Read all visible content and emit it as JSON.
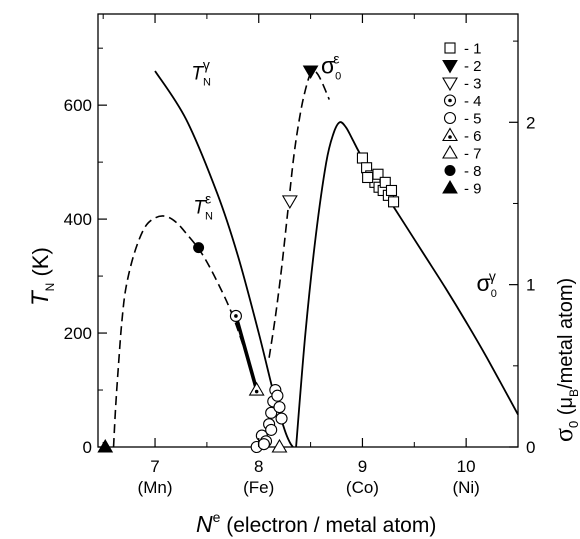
{
  "chart_data": {
    "type": "scatter",
    "x_axis": {
      "range": [
        6.45,
        10.5
      ],
      "ticks": [
        7,
        8,
        9,
        10
      ],
      "sublabels": [
        "(Mn)",
        "(Fe)",
        "(Co)",
        "(Ni)"
      ],
      "label_symbol": "N",
      "label_sup": "e",
      "label_text": "(electron / metal atom)"
    },
    "y_axis_left": {
      "range": [
        0,
        760
      ],
      "ticks": [
        0,
        200,
        400,
        600
      ],
      "label_symbol": "T",
      "label_sub": "N",
      "label_unit": "(K)"
    },
    "y_axis_right": {
      "range": [
        0,
        2.667
      ],
      "ticks": [
        0,
        1,
        2
      ],
      "label_symbol": "σ",
      "label_sub": "0",
      "label_text": "(μ",
      "label_sub2": "B",
      "label_tail": "/metal atom)"
    },
    "curves": [
      {
        "name": "TN-gamma",
        "style": "solid",
        "axis": "left",
        "x": [
          7.0,
          7.3,
          7.6,
          7.8,
          8.0,
          8.15,
          8.25,
          8.3,
          8.33
        ],
        "y": [
          660,
          575,
          445,
          335,
          200,
          90,
          30,
          8,
          0
        ]
      },
      {
        "name": "TN-epsilon",
        "style": "dashed",
        "axis": "left",
        "x": [
          6.6,
          6.62,
          6.65,
          6.68,
          6.72,
          6.8,
          6.9,
          7.0,
          7.1,
          7.2,
          7.3,
          7.45,
          7.6,
          7.75,
          7.9,
          7.98
        ],
        "y": [
          0,
          70,
          150,
          220,
          280,
          340,
          385,
          402,
          405,
          395,
          375,
          340,
          290,
          230,
          150,
          100
        ]
      },
      {
        "name": "sigma0-epsilon",
        "style": "dashed",
        "axis": "right",
        "x": [
          8.1,
          8.16,
          8.22,
          8.28,
          8.34,
          8.4,
          8.45,
          8.5,
          8.55,
          8.6,
          8.68
        ],
        "y": [
          0.55,
          0.8,
          1.1,
          1.45,
          1.8,
          2.05,
          2.2,
          2.3,
          2.31,
          2.26,
          2.14
        ]
      },
      {
        "name": "sigma0-gamma",
        "style": "solid",
        "axis": "right",
        "x": [
          8.36,
          8.45,
          8.55,
          8.65,
          8.72,
          8.78,
          8.84,
          8.9,
          9.0,
          9.2,
          9.4,
          9.6,
          9.8,
          10.0,
          10.2,
          10.5
        ],
        "y": [
          0,
          0.7,
          1.3,
          1.75,
          1.93,
          2.0,
          1.97,
          1.9,
          1.78,
          1.58,
          1.38,
          1.18,
          0.98,
          0.77,
          0.55,
          0.2
        ]
      },
      {
        "name": "thick-segment",
        "style": "thick",
        "axis": "left",
        "x": [
          7.78,
          7.98
        ],
        "y": [
          230,
          100
        ]
      }
    ],
    "curve_labels": [
      {
        "symbol": "T",
        "sub": "N",
        "sup": "γ",
        "x": 7.35,
        "y": 645,
        "axis": "left"
      },
      {
        "symbol": "T",
        "sub": "N",
        "sup": "ε",
        "x": 7.37,
        "y": 410,
        "axis": "left"
      },
      {
        "symbol": "σ",
        "sub": "0",
        "sup": "ε",
        "x": 8.6,
        "y": 2.3,
        "axis": "right"
      },
      {
        "symbol": "σ",
        "sub": "0",
        "sup": "γ",
        "x": 10.1,
        "y": 0.96,
        "axis": "right"
      }
    ],
    "series": [
      {
        "name": "- 1",
        "marker": "square-open",
        "axis": "right",
        "x": [
          9.0,
          9.04,
          9.08,
          9.12,
          9.16,
          9.2,
          9.25,
          9.3,
          9.05,
          9.15,
          9.22,
          9.28
        ],
        "y": [
          1.78,
          1.72,
          1.67,
          1.63,
          1.6,
          1.58,
          1.55,
          1.51,
          1.66,
          1.68,
          1.63,
          1.58
        ]
      },
      {
        "name": "- 2",
        "marker": "triangle-down-filled",
        "axis": "left",
        "x": [
          8.5
        ],
        "y": [
          660
        ]
      },
      {
        "name": "- 3",
        "marker": "triangle-down-open",
        "axis": "left",
        "x": [
          8.3
        ],
        "y": [
          432
        ]
      },
      {
        "name": "- 4",
        "marker": "circle-dot",
        "axis": "left",
        "x": [
          7.78
        ],
        "y": [
          230
        ]
      },
      {
        "name": "- 5",
        "marker": "circle-open",
        "axis": "left",
        "x": [
          7.98,
          8.03,
          8.07,
          8.1,
          8.12,
          8.14,
          8.16,
          8.18,
          8.2,
          8.22,
          8.12,
          8.05
        ],
        "y": [
          0,
          20,
          10,
          40,
          60,
          80,
          100,
          90,
          70,
          50,
          30,
          5
        ]
      },
      {
        "name": "- 6",
        "marker": "triangle-up-dot",
        "axis": "left",
        "x": [
          7.98
        ],
        "y": [
          100
        ]
      },
      {
        "name": "- 7",
        "marker": "triangle-up-open",
        "axis": "left",
        "x": [
          8.2
        ],
        "y": [
          0
        ]
      },
      {
        "name": "- 8",
        "marker": "circle-filled",
        "axis": "left",
        "x": [
          7.42
        ],
        "y": [
          350
        ]
      },
      {
        "name": "- 9",
        "marker": "triangle-up-filled",
        "axis": "left",
        "x": [
          6.52
        ],
        "y": [
          0
        ]
      }
    ]
  }
}
